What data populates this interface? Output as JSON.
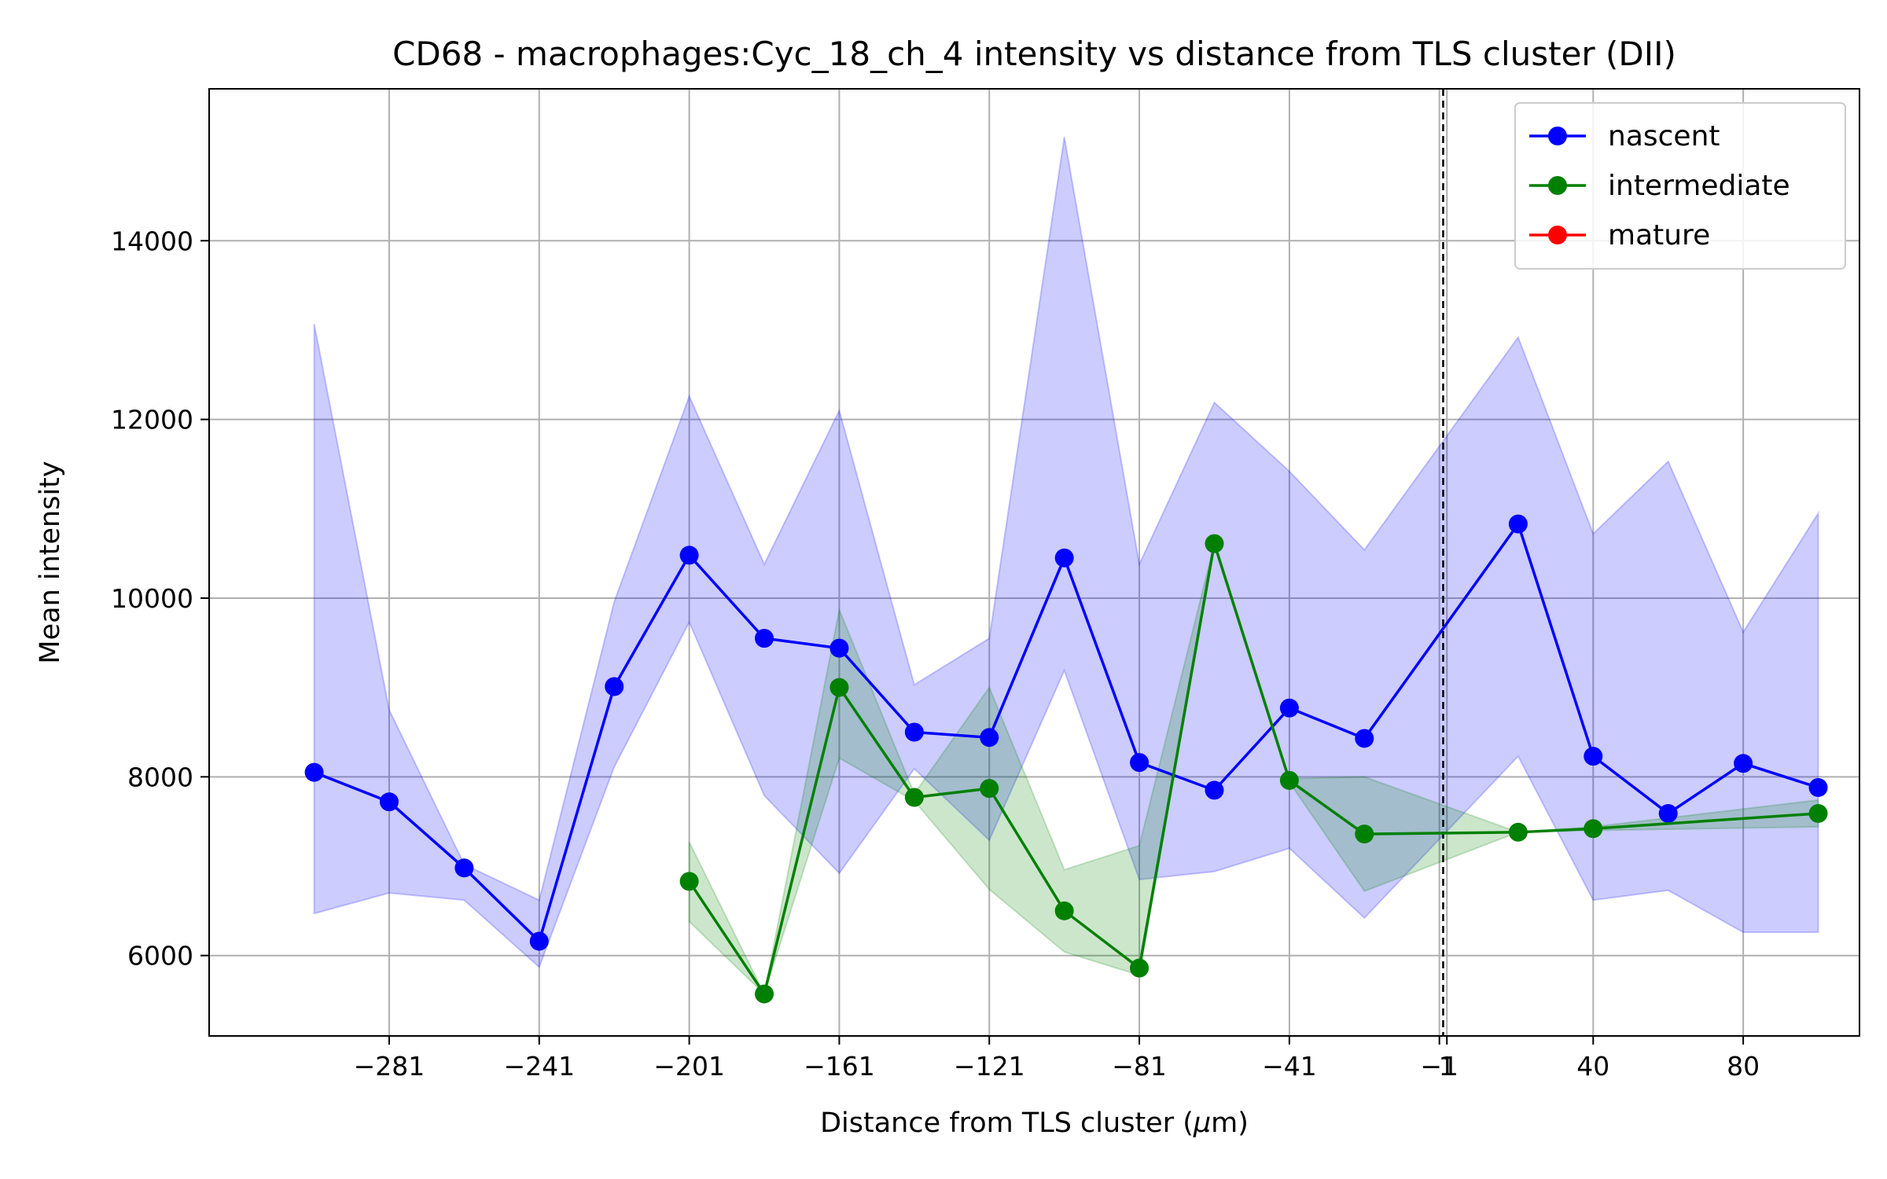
{
  "chart_data": {
    "type": "line",
    "title": "CD68 - macrophages:Cyc_18_ch_4 intensity vs distance from TLS cluster (DII)",
    "xlabel_prefix": "Distance from TLS cluster (",
    "xlabel_mu": "μ",
    "xlabel_suffix": "m)",
    "ylabel": "Mean intensity",
    "xlim": [
      -329,
      111
    ],
    "ylim": [
      5100,
      15700
    ],
    "x_ticks": [
      -281,
      -241,
      -201,
      -161,
      -121,
      -81,
      -41,
      -1,
      1,
      40,
      80
    ],
    "x_tick_labels": [
      "−281",
      "−241",
      "−201",
      "−161",
      "−121",
      "−81",
      "−41",
      "−1",
      "1",
      "40",
      "80"
    ],
    "y_ticks": [
      6000,
      8000,
      10000,
      12000,
      14000
    ],
    "y_tick_labels": [
      "6000",
      "8000",
      "10000",
      "12000",
      "14000"
    ],
    "grid": true,
    "vline_x": 0,
    "legend_position": "top-right",
    "series": [
      {
        "name": "nascent",
        "color": "#0000ff",
        "band_color": "#0000ff",
        "points": [
          {
            "x": -301,
            "y": 8050,
            "lo": 6470,
            "hi": 13070
          },
          {
            "x": -281,
            "y": 7720,
            "lo": 6700,
            "hi": 8750
          },
          {
            "x": -261,
            "y": 6980,
            "lo": 6620,
            "hi": 7020
          },
          {
            "x": -241,
            "y": 6160,
            "lo": 5870,
            "hi": 6620
          },
          {
            "x": -221,
            "y": 9010,
            "lo": 8110,
            "hi": 9960
          },
          {
            "x": -201,
            "y": 10480,
            "lo": 9730,
            "hi": 12260
          },
          {
            "x": -181,
            "y": 9550,
            "lo": 7790,
            "hi": 10380
          },
          {
            "x": -161,
            "y": 9440,
            "lo": 6920,
            "hi": 12100
          },
          {
            "x": -141,
            "y": 8500,
            "lo": 8090,
            "hi": 9030
          },
          {
            "x": -121,
            "y": 8440,
            "lo": 7290,
            "hi": 9550
          },
          {
            "x": -101,
            "y": 10450,
            "lo": 9190,
            "hi": 15160
          },
          {
            "x": -81,
            "y": 8160,
            "lo": 6850,
            "hi": 10380
          },
          {
            "x": -61,
            "y": 7850,
            "lo": 6940,
            "hi": 12190
          },
          {
            "x": -41,
            "y": 8770,
            "lo": 7200,
            "hi": 11420
          },
          {
            "x": -21,
            "y": 8430,
            "lo": 6420,
            "hi": 10540
          },
          {
            "x": 20,
            "y": 10830,
            "lo": 8230,
            "hi": 12920
          },
          {
            "x": 40,
            "y": 8230,
            "lo": 6620,
            "hi": 10720
          },
          {
            "x": 60,
            "y": 7590,
            "lo": 6730,
            "hi": 11530
          },
          {
            "x": 80,
            "y": 8150,
            "lo": 6260,
            "hi": 9620
          },
          {
            "x": 100,
            "y": 7880,
            "lo": 6260,
            "hi": 10950
          }
        ]
      },
      {
        "name": "intermediate",
        "color": "#008000",
        "band_color": "#008000",
        "points": [
          {
            "x": -201,
            "y": 6830,
            "lo": 6380,
            "hi": 7270
          },
          {
            "x": -181,
            "y": 5570,
            "lo": 5570,
            "hi": 5570
          },
          {
            "x": -161,
            "y": 9000,
            "lo": 8210,
            "hi": 9870
          },
          {
            "x": -141,
            "y": 7770,
            "lo": 7730,
            "hi": 7810
          },
          {
            "x": -121,
            "y": 7870,
            "lo": 6740,
            "hi": 9000
          },
          {
            "x": -101,
            "y": 6500,
            "lo": 6040,
            "hi": 6960
          },
          {
            "x": -81,
            "y": 5860,
            "lo": 5780,
            "hi": 7230
          },
          {
            "x": -61,
            "y": 10610,
            "lo": 10610,
            "hi": 10610
          },
          {
            "x": -41,
            "y": 7960,
            "lo": 7940,
            "hi": 7980
          },
          {
            "x": -21,
            "y": 7360,
            "lo": 6720,
            "hi": 8000
          },
          {
            "x": 20,
            "y": 7380,
            "lo": 7380,
            "hi": 7380
          },
          {
            "x": 40,
            "y": 7420,
            "lo": 7400,
            "hi": 7440
          },
          {
            "x": 100,
            "y": 7590,
            "lo": 7440,
            "hi": 7740
          }
        ]
      },
      {
        "name": "mature",
        "color": "#ff0000",
        "band_color": "#ff0000",
        "points": []
      }
    ]
  }
}
